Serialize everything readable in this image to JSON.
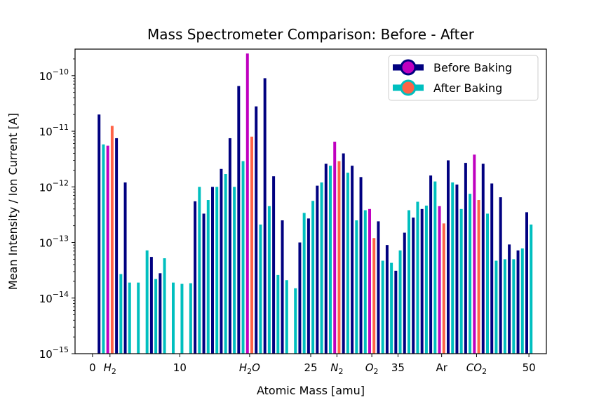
{
  "chart_data": {
    "type": "bar",
    "title": "Mass Spectrometer Comparison: Before - After",
    "xlabel": "Atomic Mass [amu]",
    "ylabel": "Mean Intensity / Ion Current [A]",
    "yscale": "log",
    "ylim": [
      1e-15,
      3e-10
    ],
    "xlim": [
      -2,
      52
    ],
    "grid": false,
    "legend_position": "top-right",
    "x_ticks": [
      {
        "value": 0,
        "label": "0",
        "sub": ""
      },
      {
        "value": 2,
        "label": "H",
        "sub": "2"
      },
      {
        "value": 10,
        "label": "10",
        "sub": ""
      },
      {
        "value": 18,
        "label": "H",
        "sub": "2",
        "tail": "O"
      },
      {
        "value": 25,
        "label": "25",
        "sub": ""
      },
      {
        "value": 28,
        "label": "N",
        "sub": "2"
      },
      {
        "value": 32,
        "label": "O",
        "sub": "2"
      },
      {
        "value": 35,
        "label": "35",
        "sub": ""
      },
      {
        "value": 40,
        "label": "Ar",
        "sub": ""
      },
      {
        "value": 44,
        "label": "CO",
        "sub": "2"
      },
      {
        "value": 50,
        "label": "50",
        "sub": ""
      }
    ],
    "y_ticks": [
      {
        "value": 1e-15,
        "base": "10",
        "exp": "−15"
      },
      {
        "value": 1e-14,
        "base": "10",
        "exp": "−14"
      },
      {
        "value": 1e-13,
        "base": "10",
        "exp": "−13"
      },
      {
        "value": 1e-12,
        "base": "10",
        "exp": "−12"
      },
      {
        "value": 1e-11,
        "base": "10",
        "exp": "−11"
      },
      {
        "value": 1e-10,
        "base": "10",
        "exp": "−10"
      }
    ],
    "highlight_masses": [
      2,
      18,
      28,
      32,
      40,
      44
    ],
    "series": [
      {
        "name": "Before Baking",
        "color": "#000080",
        "highlight_color": "#BF00BF",
        "offset": -0.25,
        "x": [
          1,
          2,
          3,
          4,
          7,
          8,
          9,
          10,
          12,
          13,
          14,
          15,
          16,
          17,
          18,
          19,
          20,
          21,
          22,
          23,
          24,
          25,
          26,
          27,
          28,
          29,
          30,
          31,
          32,
          33,
          34,
          35,
          36,
          37,
          38,
          39,
          40,
          41,
          42,
          43,
          44,
          45,
          46,
          47,
          48,
          49,
          50
        ],
        "values": [
          2e-11,
          5.5e-12,
          7.5e-12,
          1.2e-12,
          5.5e-14,
          2.8e-14,
          1e-15,
          1e-15,
          5.5e-13,
          3.3e-13,
          1e-12,
          2.1e-12,
          7.5e-12,
          6.5e-11,
          2.5e-10,
          2.8e-11,
          9e-11,
          1.55e-12,
          2.5e-13,
          1e-15,
          1e-13,
          2.7e-13,
          1.05e-12,
          2.6e-12,
          6.5e-12,
          4e-12,
          2.4e-12,
          1.5e-12,
          4e-13,
          2.4e-13,
          9e-14,
          3.1e-14,
          1.5e-13,
          2.8e-13,
          4e-13,
          1.6e-12,
          4.5e-13,
          3e-12,
          1.1e-12,
          2.7e-12,
          3.8e-12,
          2.6e-12,
          1.15e-12,
          6.5e-13,
          9.2e-14,
          7.2e-14,
          3.5e-13
        ]
      },
      {
        "name": "After Baking",
        "color": "#00BFBF",
        "highlight_color": "#FF6347",
        "offset": 0.25,
        "x": [
          1,
          2,
          3,
          4,
          5,
          6,
          7,
          8,
          9,
          10,
          11,
          12,
          13,
          14,
          15,
          16,
          17,
          18,
          19,
          20,
          21,
          22,
          23,
          24,
          25,
          26,
          27,
          28,
          29,
          30,
          31,
          32,
          33,
          34,
          35,
          36,
          37,
          38,
          39,
          40,
          41,
          42,
          43,
          44,
          45,
          46,
          47,
          48,
          49,
          50
        ],
        "values": [
          5.8e-12,
          1.25e-11,
          2.7e-14,
          1.9e-14,
          1.9e-14,
          7.2e-14,
          2.2e-14,
          5.2e-14,
          1.9e-14,
          1.8e-14,
          1.85e-14,
          1e-12,
          5.8e-13,
          1e-12,
          1.7e-12,
          1e-12,
          2.9e-12,
          8e-12,
          2.1e-13,
          4.5e-13,
          2.6e-14,
          2.1e-14,
          1.5e-14,
          3.4e-13,
          5.6e-13,
          1.2e-12,
          2.4e-12,
          2.9e-12,
          1.8e-12,
          2.5e-13,
          3.8e-13,
          1.2e-13,
          4.7e-14,
          4.3e-14,
          7.2e-14,
          3.8e-13,
          5.4e-13,
          4.6e-13,
          1.25e-12,
          2.2e-13,
          1.2e-12,
          4e-13,
          7.5e-13,
          5.8e-13,
          3.3e-13,
          4.7e-14,
          5e-14,
          5e-14,
          7.8e-14,
          2.1e-13
        ]
      }
    ]
  }
}
